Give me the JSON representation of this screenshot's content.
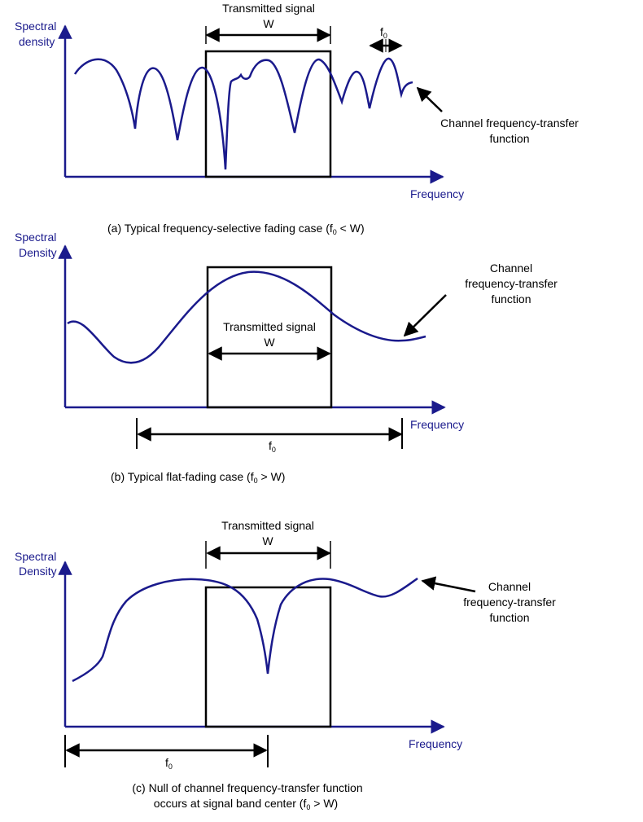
{
  "colors": {
    "axis": "#1a1a8c",
    "curve": "#1a1a8c",
    "signal_box": "#000000",
    "text": "#000000"
  },
  "panel_a": {
    "ylabel_line1": "Spectral",
    "ylabel_line2": "density",
    "xlabel": "Frequency",
    "signal_label_line1": "Transmitted signal",
    "signal_label_line2": "W",
    "f0_label": "f",
    "f0_sub": "0",
    "channel_label_line1": "Channel frequency-transfer",
    "channel_label_line2": "function",
    "caption_pre": "(a) Typical frequency-selective fading case (f",
    "caption_sub": "0",
    "caption_post": " < W)"
  },
  "panel_b": {
    "ylabel_line1": "Spectral",
    "ylabel_line2": "Density",
    "xlabel": "Frequency",
    "signal_label_line1": "Transmitted signal",
    "signal_label_line2": "W",
    "f0_label": "f",
    "f0_sub": "0",
    "channel_label_line1": "Channel",
    "channel_label_line2": "frequency-transfer",
    "channel_label_line3": "function",
    "caption_pre": "(b) Typical flat-fading case (f",
    "caption_sub": "0",
    "caption_post": " > W)"
  },
  "panel_c": {
    "ylabel_line1": "Spectral",
    "ylabel_line2": "Density",
    "xlabel": "Frequency",
    "signal_label_line1": "Transmitted signal",
    "signal_label_line2": "W",
    "f0_label": "f",
    "f0_sub": "0",
    "channel_label_line1": "Channel",
    "channel_label_line2": "frequency-transfer",
    "channel_label_line3": "function",
    "caption_line1": "(c) Null of channel frequency-transfer function",
    "caption_line2_pre": "occurs at signal band center (f",
    "caption_line2_sub": "0",
    "caption_line2_post": " > W)"
  }
}
